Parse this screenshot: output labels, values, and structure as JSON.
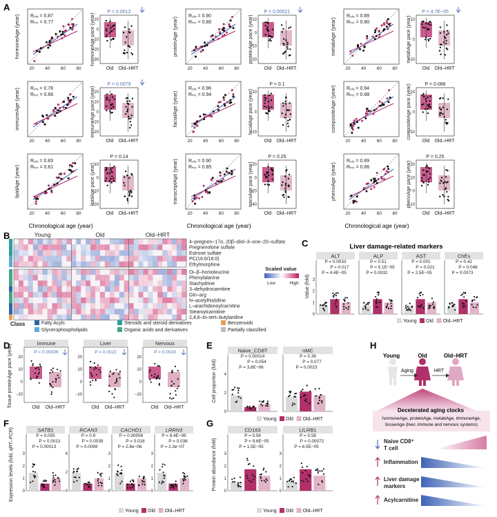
{
  "panels": {
    "a": "A",
    "b": "B",
    "c": "C",
    "d": "D",
    "e": "E",
    "f": "F",
    "g": "G",
    "h": "H"
  },
  "colors": {
    "old": "#b0306a",
    "hrt": "#e2b4c9",
    "young": "#d9d9d9",
    "blue": "#4a6fb5",
    "old_box": "#c0407a",
    "hrt_box": "#dfb0c4"
  },
  "panel_a": {
    "common_xlabel": "Chronological age (year)",
    "group_labels": [
      "Old",
      "Old–HRT"
    ],
    "scatter_x_ticks": [
      "20",
      "40",
      "60",
      "80"
    ],
    "clocks": [
      {
        "ylabel": "hormoneAge (year)",
        "r_old": "Rₒₗₔ = 0.87",
        "r_hrt": "Rₕᵣₜ = 0.77",
        "pace_label": "hormoneAge pace (year)",
        "p": "P = 0.0012",
        "p_arrow": true,
        "pace_ticks": [
          "10",
          "0",
          "−10",
          "−20",
          "−30"
        ]
      },
      {
        "ylabel": "proteinAge (year)",
        "r_old": "Rₒₗₔ = 0.90",
        "r_hrt": "Rₕᵣₜ = 0.80",
        "pace_label": "proteinAge pace (year)",
        "p": "P = 0.00021",
        "p_arrow": true,
        "pace_ticks": [
          "10",
          "0",
          "−10",
          "−20"
        ]
      },
      {
        "ylabel": "metabAge (year)",
        "r_old": "Rₒₗₔ = 0.89",
        "r_hrt": "Rₕᵣₜ = 0.80",
        "pace_label": "metabAge pace (year)",
        "p": "P = 4.7E−05",
        "p_arrow": true,
        "pace_ticks": [
          "10",
          "0",
          "−10"
        ]
      },
      {
        "ylabel": "immuneAge (year)",
        "r_old": "Rₒₗₔ = 0.78",
        "r_hrt": "Rₕᵣₜ = 0.66",
        "pace_label": "immuneAge pace (year)",
        "p": "P = 0.0079",
        "p_arrow": true,
        "pace_ticks": [
          "20",
          "10",
          "0",
          "−10",
          "−20"
        ]
      },
      {
        "ylabel": "facialAge (year)",
        "r_old": "Rₒₗₔ = 0.96",
        "r_hrt": "Rₕᵣₜ = 0.94",
        "pace_label": "facialAge pace (year)",
        "p": "P = 0.1",
        "p_arrow": false,
        "pace_ticks": [
          "10",
          "0",
          "−10"
        ]
      },
      {
        "ylabel": "compositeAge (year)",
        "r_old": "Rₒₗₔ = 0.94",
        "r_hrt": "Rₕᵣₜ = 0.88",
        "pace_label": "compositeAge pace (year)",
        "p": "P = 0.086",
        "p_arrow": false,
        "pace_ticks": [
          "10",
          "0",
          "−10"
        ]
      },
      {
        "ylabel": "lipidAge (year)",
        "r_old": "Rₒₗₔ = 0.83",
        "r_hrt": "Rₕᵣₜ = 0.61",
        "pace_label": "lipidAge pace (year)",
        "p": "P = 0.14",
        "p_arrow": false,
        "pace_ticks": [
          "10",
          "0",
          "−10",
          "−20"
        ]
      },
      {
        "ylabel": "transcriptAge (year)",
        "r_old": "Rₒₗₔ = 0.90",
        "r_hrt": "Rₕᵣₜ = 0.85",
        "pace_label": "transAge pace (year)",
        "p": "P = 0.25",
        "p_arrow": false,
        "pace_ticks": [
          "20",
          "0",
          "−20",
          "−40"
        ]
      },
      {
        "ylabel": "phenoAge (year)",
        "r_old": "Rₒₗₔ = 0.89",
        "r_hrt": "Rₕᵣₜ = 0.86",
        "pace_label": "phenoAge pace (year)",
        "p": "P = 0.25",
        "p_arrow": false,
        "pace_ticks": [
          "20",
          "10",
          "0",
          "−10"
        ]
      }
    ]
  },
  "panel_b": {
    "groups": [
      "Young",
      "Old",
      "Old–HRT"
    ],
    "rows": [
      "4–pregnen–17α, 20β–diol–3–one–20–sulfate",
      "Pregnenolone sulfate",
      "Estrone sulfate",
      "PC(16:0/18:0)",
      "Ethylmorphine",
      "Di–β–homoleucine",
      "Phenylalanine",
      "Stachydrine",
      "3–dehydrocarnitine",
      "Gln–arg",
      "N–acetylhistidine",
      "L–arachidonoylcarnitine",
      "Stearoylcarnitine",
      "2,4,6–tri–tert–butylaniline"
    ],
    "scale_title": "Scaled value",
    "scale_low": "Low",
    "scale_high": "High",
    "class_title": "Class",
    "classes": [
      {
        "label": "Fatty Acyls",
        "color": "#2c64a8"
      },
      {
        "label": "Glycerophospholipids",
        "color": "#5fa8d6"
      },
      {
        "label": "Steroids and steroid derivatives",
        "color": "#2a9e9b"
      },
      {
        "label": "Organic acids and derivatives",
        "color": "#43a58a"
      },
      {
        "label": "Benzenoids",
        "color": "#e3a15a"
      },
      {
        "label": "Partially classified",
        "color": "#bdbdbd"
      }
    ]
  },
  "panel_c": {
    "title": "Liver damage-related markers",
    "ylabel": "Value (fold)",
    "y_ticks": [
      "3",
      "2",
      "1",
      "0"
    ],
    "markers": [
      {
        "name": "ALT",
        "p1": "P = 0.0033",
        "p2": "P = 0.017",
        "p3": "P = 4.4E−05"
      },
      {
        "name": "ALP",
        "p1": "P = 0.51",
        "p2": "P = 5.1E−05",
        "p3": "P = 0.0032"
      },
      {
        "name": "AST",
        "p1": "P = 0.001",
        "p2": "P = 0.021",
        "p3": "P = 2.5E−05"
      },
      {
        "name": "ChEs",
        "p1": "P = 0.42",
        "p2": "P = 0.048",
        "p3": "P = 0.0073"
      }
    ],
    "legend": [
      "Young",
      "Old",
      "Old–HRT"
    ]
  },
  "panel_d": {
    "ylabel": "Tissue proteinAge pace (year)",
    "tissues": [
      {
        "name": "Immune",
        "p": "P = 0.00036",
        "ticks": [
          "20",
          "10",
          "0",
          "−10"
        ]
      },
      {
        "name": "Liver",
        "p": "P = 0.0022",
        "ticks": [
          "20",
          "10",
          "0",
          "−10"
        ]
      },
      {
        "name": "Nervous",
        "p": "P = 0.0019",
        "ticks": [
          "20",
          "10",
          "0",
          "−10"
        ]
      }
    ],
    "group_labels": [
      "Old",
      "Old–HRT"
    ]
  },
  "panel_e": {
    "ylabel": "Cell proportion (fold)",
    "y_ticks": [
      "4",
      "2",
      "0"
    ],
    "cells": [
      {
        "name": "Naive_CD8T",
        "p1": "P = 0.00014",
        "p2": "P = 0.054",
        "p3": "P = 3.8E−06"
      },
      {
        "name": "nMC",
        "p1": "P = 0.36",
        "p2": "P = 0.077",
        "p3": "P = 0.0023"
      }
    ],
    "legend": [
      "Young",
      "Old",
      "Old–HRT"
    ]
  },
  "panel_f": {
    "ylabel": "Expression levels (fold, qRT–PCR)",
    "genes": [
      {
        "name": "SATB1",
        "p1": "P = 0.055",
        "p2": "P = 0.0013",
        "p3": "P = 0.00013",
        "ticks": [
          "3",
          "2",
          "1",
          "0"
        ]
      },
      {
        "name": "RCAN3",
        "p1": "P = 0.9",
        "p2": "P = 0.0039",
        "p3": "P = 0.0069",
        "ticks": [
          "4",
          "2",
          "0"
        ]
      },
      {
        "name": "CACHD1",
        "p1": "P = 0.00056",
        "p2": "P = 0.018",
        "p3": "P = 2.8e−06",
        "ticks": [
          "3",
          "2",
          "1",
          "0"
        ]
      },
      {
        "name": "LRRN3",
        "p1": "P = 8.4E−06",
        "p2": "P = 0.038",
        "p3": "P = 2.3e−07",
        "ticks": [
          "3",
          "2",
          "1",
          "0"
        ]
      }
    ],
    "legend": [
      "Young",
      "Old",
      "Old–HRT"
    ]
  },
  "panel_g": {
    "ylabel": "Protein abundance (fold)",
    "proteins": [
      {
        "name": "CD163",
        "p1": "P = 0.58",
        "p2": "P = 9.6E−05",
        "p3": "P = 1.5E−05",
        "ticks": [
          "3",
          "2",
          "1",
          "0"
        ]
      },
      {
        "name": "LILRB1",
        "p1": "P = 0.58",
        "p2": "P = 0.00072",
        "p3": "P = 6.5E−05",
        "ticks": [
          "3",
          "2",
          "1",
          "0"
        ]
      }
    ],
    "legend": [
      "Young",
      "Old",
      "Old–HRT"
    ]
  },
  "panel_h": {
    "stage_young": "Young",
    "stage_old": "Old",
    "stage_hrt": "Old–HRT",
    "arrow_aging": "Aging",
    "arrow_hrt": "HRT",
    "clock_title": "Decelerated aging clocks",
    "clock_list_1": "hormoneAge, proteinAge, metabAge, immuneAge,",
    "clock_list_2": "tissueAge (liver, immune and nervous systems)",
    "items": [
      {
        "label_1": "Naive CD8⁺",
        "label_2": "T cell",
        "direction": "down"
      },
      {
        "label_1": "Inflammation",
        "label_2": "",
        "direction": "up"
      },
      {
        "label_1": "Liver damage",
        "label_2": "markers",
        "direction": "up"
      },
      {
        "label_1": "Acylcarnitine",
        "label_2": "",
        "direction": "up"
      }
    ]
  }
}
